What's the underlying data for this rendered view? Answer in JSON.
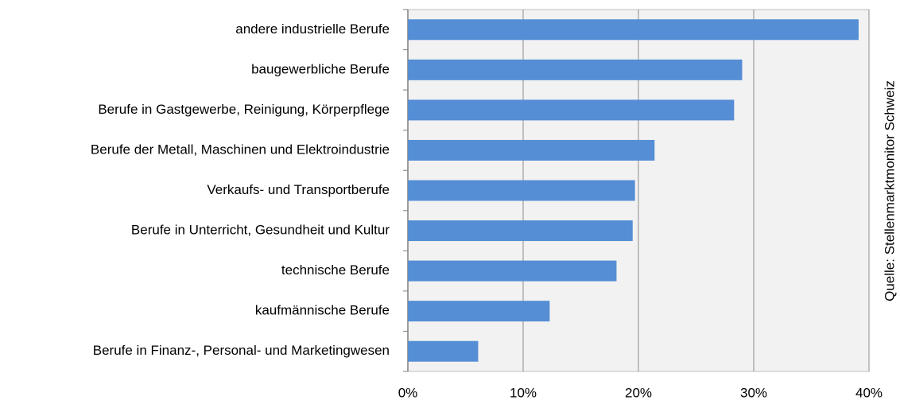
{
  "chart_data": {
    "type": "hbar",
    "categories": [
      "andere industrielle Berufe",
      "baugewerbliche Berufe",
      "Berufe in Gastgewerbe, Reinigung, Körperpflege",
      "Berufe der Metall, Maschinen und Elektroindustrie",
      "Verkaufs- und Transportberufe",
      "Berufe in Unterricht, Gesundheit und Kultur",
      "technische Berufe",
      "kaufmännische Berufe",
      "Berufe in Finanz-, Personal- und Marketingwesen"
    ],
    "values": [
      39.1,
      29,
      28.3,
      21.4,
      19.7,
      19.5,
      18.1,
      12.3,
      6.1
    ],
    "color": "#558ed5",
    "xlim": [
      0,
      40
    ],
    "xticks": [
      {
        "value": 0,
        "label": "0%"
      },
      {
        "value": 10,
        "label": "10%"
      },
      {
        "value": 20,
        "label": "20%"
      },
      {
        "value": 30,
        "label": "30%"
      },
      {
        "value": 40,
        "label": "40%"
      }
    ],
    "grid": true,
    "source": "Quelle: Stellenmarktmonitor Schweiz"
  }
}
